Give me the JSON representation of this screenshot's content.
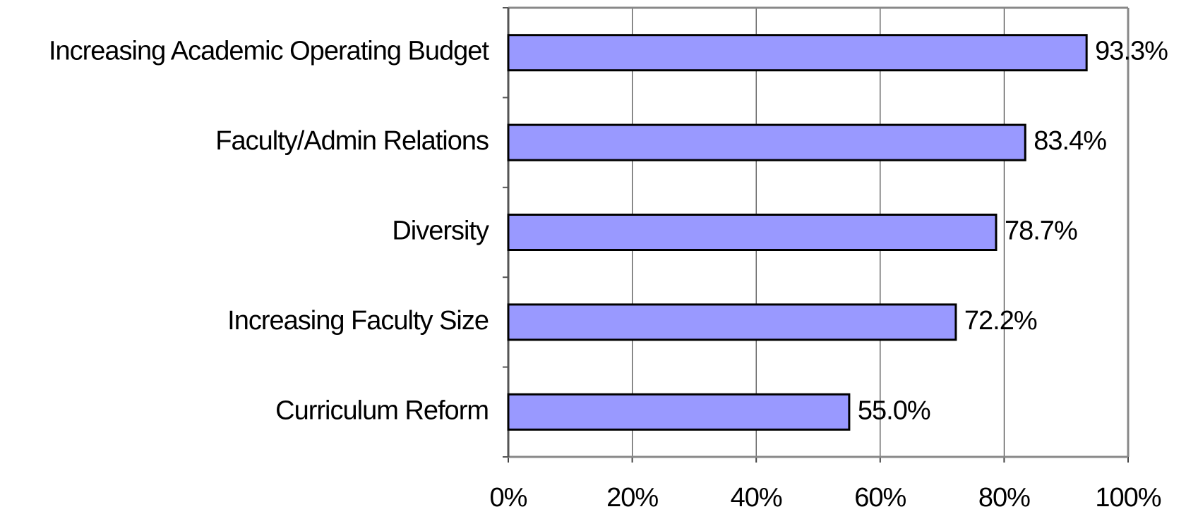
{
  "chart_data": {
    "type": "bar",
    "orientation": "horizontal",
    "categories": [
      "Increasing Academic Operating Budget",
      "Faculty/Admin Relations",
      "Diversity",
      "Increasing Faculty Size",
      "Curriculum Reform"
    ],
    "values": [
      93.3,
      83.4,
      78.7,
      72.2,
      55.0
    ],
    "value_labels": [
      "93.3%",
      "83.4%",
      "78.7%",
      "72.2%",
      "55.0%"
    ],
    "color": "#9999ff",
    "xlim": [
      0,
      100
    ],
    "xticks": [
      {
        "value": 0,
        "label": "0%"
      },
      {
        "value": 20,
        "label": "20%"
      },
      {
        "value": 40,
        "label": "40%"
      },
      {
        "value": 60,
        "label": "60%"
      },
      {
        "value": 80,
        "label": "80%"
      },
      {
        "value": 100,
        "label": "100%"
      }
    ],
    "grid": true
  }
}
